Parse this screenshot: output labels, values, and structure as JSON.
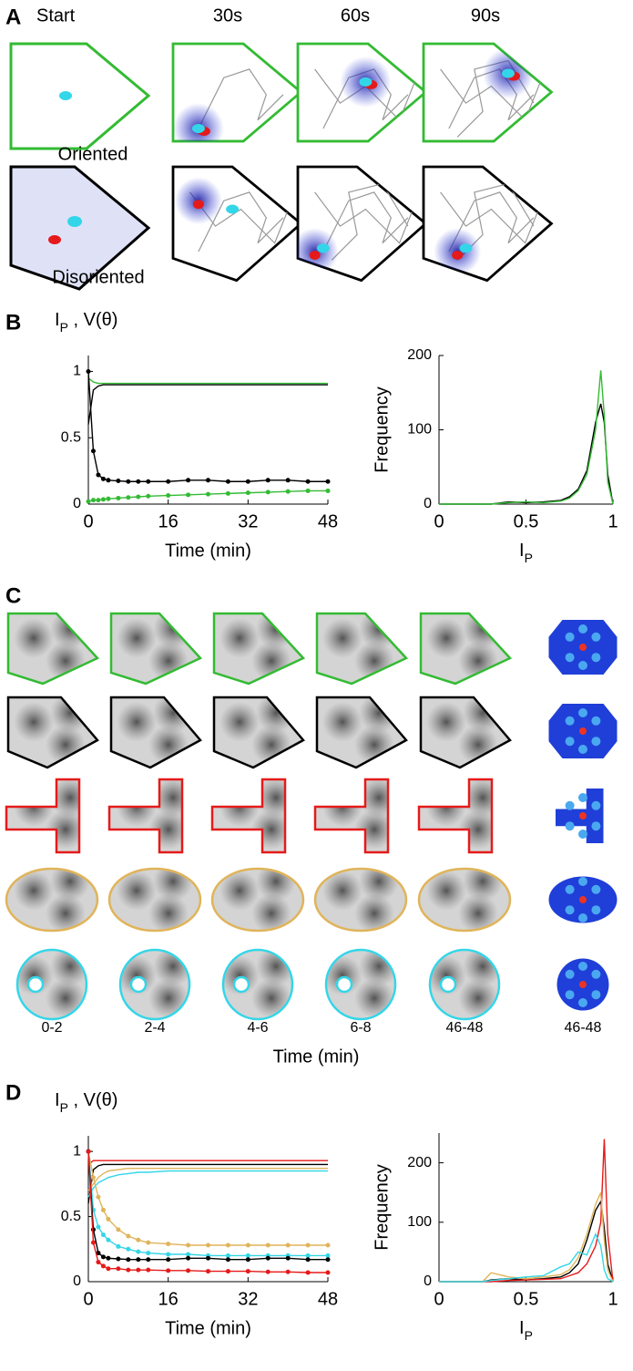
{
  "panels": {
    "A": {
      "label": "A",
      "columns": [
        "Start",
        "30s",
        "60s",
        "90s"
      ],
      "rows": [
        "Oriented",
        "Disoriented"
      ]
    },
    "B": {
      "label": "B"
    },
    "C": {
      "label": "C",
      "columns": [
        "0-2",
        "2-4",
        "4-6",
        "6-8",
        "46-48",
        "46-48"
      ],
      "xlabel": "Time (min)"
    },
    "D": {
      "label": "D"
    }
  },
  "chart_data": [
    {
      "type": "line",
      "ylabel": [
        "I",
        "P",
        " , V(θ)"
      ],
      "xlabel": "Time (min)",
      "x": [
        0,
        1,
        2,
        3,
        4,
        6,
        8,
        10,
        12,
        16,
        20,
        24,
        28,
        32,
        36,
        40,
        44,
        48
      ],
      "xlim": [
        0,
        48
      ],
      "xticks": [
        0,
        16,
        32,
        48
      ],
      "ylim": [
        0,
        1.12
      ],
      "yticks": [
        0,
        0.5,
        1
      ],
      "series": [
        {
          "color": "#000000",
          "marker": false,
          "values": [
            0.6,
            0.86,
            0.89,
            0.9,
            0.9,
            0.9,
            0.9,
            0.9,
            0.9,
            0.9,
            0.9,
            0.9,
            0.9,
            0.9,
            0.9,
            0.9,
            0.9,
            0.9
          ]
        },
        {
          "color": "#33bb33",
          "marker": false,
          "values": [
            0.95,
            0.92,
            0.91,
            0.91,
            0.91,
            0.91,
            0.91,
            0.91,
            0.91,
            0.91,
            0.91,
            0.91,
            0.91,
            0.91,
            0.91,
            0.91,
            0.91,
            0.91
          ]
        },
        {
          "color": "#000000",
          "marker": true,
          "values": [
            1,
            0.4,
            0.22,
            0.19,
            0.18,
            0.175,
            0.17,
            0.17,
            0.17,
            0.17,
            0.18,
            0.18,
            0.17,
            0.17,
            0.18,
            0.18,
            0.17,
            0.17
          ]
        },
        {
          "color": "#33bb33",
          "marker": true,
          "values": [
            0.02,
            0.03,
            0.03,
            0.035,
            0.04,
            0.045,
            0.05,
            0.055,
            0.06,
            0.065,
            0.07,
            0.075,
            0.08,
            0.085,
            0.09,
            0.095,
            0.1,
            0.1
          ]
        }
      ]
    },
    {
      "type": "line",
      "ylabel": "Frequency",
      "xlabel": [
        "I",
        "P"
      ],
      "x": [
        0,
        0.3,
        0.4,
        0.5,
        0.6,
        0.7,
        0.75,
        0.8,
        0.85,
        0.9,
        0.93,
        0.95,
        0.97,
        1
      ],
      "xlim": [
        0,
        1
      ],
      "xticks": [
        0,
        0.5,
        1
      ],
      "ylim": [
        0,
        200
      ],
      "yticks": [
        0,
        100,
        200
      ],
      "series": [
        {
          "color": "#000000",
          "marker": false,
          "values": [
            0,
            0,
            3,
            2,
            3,
            5,
            10,
            20,
            45,
            110,
            135,
            110,
            40,
            0
          ]
        },
        {
          "color": "#33bb33",
          "marker": false,
          "values": [
            0,
            0,
            2,
            3,
            2,
            4,
            8,
            18,
            40,
            100,
            180,
            120,
            30,
            0
          ]
        }
      ]
    },
    {
      "type": "line",
      "ylabel": [
        "I",
        "P",
        " , V(θ)"
      ],
      "xlabel": "Time (min)",
      "x": [
        0,
        1,
        2,
        3,
        4,
        6,
        8,
        10,
        12,
        16,
        20,
        24,
        28,
        32,
        36,
        40,
        44,
        48
      ],
      "xlim": [
        0,
        48
      ],
      "xticks": [
        0,
        16,
        32,
        48
      ],
      "ylim": [
        0,
        1.12
      ],
      "yticks": [
        0,
        0.5,
        1
      ],
      "series": [
        {
          "color": "#e51a1a",
          "marker": false,
          "values": [
            0.9,
            0.93,
            0.93,
            0.93,
            0.93,
            0.93,
            0.93,
            0.93,
            0.93,
            0.93,
            0.93,
            0.93,
            0.93,
            0.93,
            0.93,
            0.93,
            0.93,
            0.93
          ]
        },
        {
          "color": "#000000",
          "marker": false,
          "values": [
            0.6,
            0.86,
            0.89,
            0.9,
            0.9,
            0.9,
            0.9,
            0.9,
            0.9,
            0.9,
            0.9,
            0.9,
            0.9,
            0.9,
            0.9,
            0.9,
            0.9,
            0.9
          ]
        },
        {
          "color": "#e0b45a",
          "marker": false,
          "values": [
            0.7,
            0.75,
            0.8,
            0.83,
            0.85,
            0.86,
            0.87,
            0.87,
            0.87,
            0.87,
            0.87,
            0.87,
            0.87,
            0.87,
            0.87,
            0.87,
            0.87,
            0.87
          ]
        },
        {
          "color": "#33d6e8",
          "marker": false,
          "values": [
            0.65,
            0.72,
            0.76,
            0.78,
            0.8,
            0.82,
            0.83,
            0.84,
            0.84,
            0.85,
            0.85,
            0.85,
            0.85,
            0.85,
            0.85,
            0.85,
            0.85,
            0.85
          ]
        },
        {
          "color": "#e0b45a",
          "marker": true,
          "values": [
            1,
            0.8,
            0.65,
            0.55,
            0.48,
            0.4,
            0.35,
            0.32,
            0.3,
            0.29,
            0.28,
            0.28,
            0.28,
            0.28,
            0.28,
            0.28,
            0.28,
            0.28
          ]
        },
        {
          "color": "#33d6e8",
          "marker": true,
          "values": [
            1,
            0.55,
            0.42,
            0.36,
            0.32,
            0.27,
            0.25,
            0.23,
            0.22,
            0.21,
            0.21,
            0.2,
            0.2,
            0.2,
            0.2,
            0.2,
            0.2,
            0.2
          ]
        },
        {
          "color": "#000000",
          "marker": true,
          "values": [
            1,
            0.4,
            0.22,
            0.19,
            0.18,
            0.175,
            0.17,
            0.17,
            0.17,
            0.17,
            0.18,
            0.18,
            0.17,
            0.17,
            0.18,
            0.18,
            0.17,
            0.17
          ]
        },
        {
          "color": "#e51a1a",
          "marker": true,
          "values": [
            1,
            0.3,
            0.15,
            0.12,
            0.1,
            0.1,
            0.09,
            0.09,
            0.09,
            0.085,
            0.085,
            0.08,
            0.08,
            0.08,
            0.075,
            0.075,
            0.07,
            0.07
          ]
        }
      ]
    },
    {
      "type": "line",
      "ylabel": "Frequency",
      "xlabel": [
        "I",
        "P"
      ],
      "x": [
        0,
        0.25,
        0.3,
        0.4,
        0.5,
        0.6,
        0.7,
        0.75,
        0.8,
        0.85,
        0.9,
        0.93,
        0.95,
        0.97,
        1
      ],
      "xlim": [
        0,
        1
      ],
      "xticks": [
        0,
        0.5,
        1
      ],
      "ylim": [
        0,
        250
      ],
      "yticks": [
        0,
        100,
        200
      ],
      "series": [
        {
          "color": "#000000",
          "marker": false,
          "values": [
            0,
            0,
            3,
            5,
            3,
            5,
            8,
            15,
            30,
            70,
            120,
            135,
            90,
            30,
            0
          ]
        },
        {
          "color": "#e51a1a",
          "marker": false,
          "values": [
            0,
            0,
            0,
            2,
            3,
            4,
            5,
            10,
            15,
            30,
            60,
            100,
            240,
            80,
            0
          ]
        },
        {
          "color": "#e0b45a",
          "marker": false,
          "values": [
            0,
            0,
            15,
            8,
            5,
            8,
            12,
            20,
            40,
            80,
            130,
            150,
            70,
            20,
            0
          ]
        },
        {
          "color": "#33d6e8",
          "marker": false,
          "values": [
            0,
            0,
            2,
            5,
            8,
            10,
            25,
            30,
            50,
            45,
            80,
            60,
            20,
            5,
            0
          ]
        }
      ]
    }
  ]
}
